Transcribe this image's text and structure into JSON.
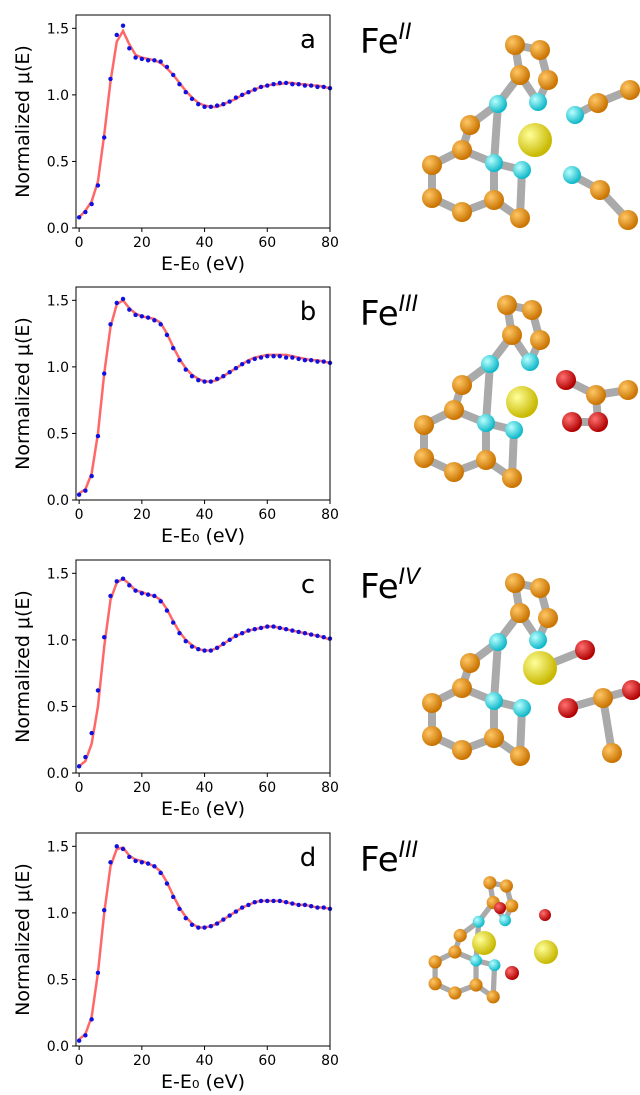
{
  "chart_data": [
    {
      "type": "line",
      "panel_label": "a",
      "annotation": {
        "text": "Fe",
        "superscript": "II",
        "color": "#1a1aff"
      },
      "xlabel": "E-E₀ (eV)",
      "ylabel": "Normalized μ(E)",
      "xlim": [
        -1,
        80
      ],
      "ylim": [
        0,
        1.6
      ],
      "xticks": [
        0,
        20,
        40,
        60,
        80
      ],
      "yticks": [
        {
          "value": 0,
          "label": "0.0"
        },
        {
          "value": 0.5,
          "label": "0.5"
        },
        {
          "value": 1,
          "label": "1.0"
        },
        {
          "value": 1.5,
          "label": "1.5"
        }
      ],
      "x": [
        0,
        2,
        4,
        6,
        8,
        10,
        12,
        14,
        16,
        18,
        20,
        22,
        24,
        26,
        28,
        30,
        32,
        34,
        36,
        38,
        40,
        42,
        44,
        46,
        48,
        50,
        52,
        54,
        56,
        58,
        60,
        62,
        64,
        66,
        68,
        70,
        72,
        74,
        76,
        78,
        80
      ],
      "series": [
        {
          "style": "line",
          "color": "#ff4d4d",
          "values": [
            0.08,
            0.13,
            0.2,
            0.35,
            0.7,
            1.1,
            1.4,
            1.48,
            1.38,
            1.3,
            1.28,
            1.27,
            1.26,
            1.24,
            1.2,
            1.15,
            1.09,
            1.03,
            0.98,
            0.94,
            0.92,
            0.91,
            0.91,
            0.93,
            0.95,
            0.97,
            1.0,
            1.02,
            1.04,
            1.06,
            1.07,
            1.08,
            1.08,
            1.09,
            1.09,
            1.08,
            1.08,
            1.07,
            1.07,
            1.06,
            1.05
          ]
        },
        {
          "style": "markers",
          "color": "#1010e0",
          "values": [
            0.08,
            0.12,
            0.18,
            0.32,
            0.68,
            1.12,
            1.45,
            1.52,
            1.35,
            1.28,
            1.27,
            1.26,
            1.26,
            1.25,
            1.21,
            1.15,
            1.08,
            1.02,
            0.97,
            0.93,
            0.91,
            0.91,
            0.92,
            0.93,
            0.95,
            0.98,
            1.0,
            1.02,
            1.04,
            1.06,
            1.07,
            1.08,
            1.09,
            1.09,
            1.08,
            1.08,
            1.07,
            1.07,
            1.06,
            1.06,
            1.05
          ]
        }
      ]
    },
    {
      "type": "line",
      "panel_label": "b",
      "annotation": {
        "text": "Fe",
        "superscript": "III",
        "color": "#2a962a"
      },
      "xlabel": "E-E₀ (eV)",
      "ylabel": "Normalized μ(E)",
      "xlim": [
        -1,
        80
      ],
      "ylim": [
        0,
        1.6
      ],
      "xticks": [
        0,
        20,
        40,
        60,
        80
      ],
      "yticks": [
        {
          "value": 0,
          "label": "0.0"
        },
        {
          "value": 0.5,
          "label": "0.5"
        },
        {
          "value": 1,
          "label": "1.0"
        },
        {
          "value": 1.5,
          "label": "1.5"
        }
      ],
      "x": [
        0,
        2,
        4,
        6,
        8,
        10,
        12,
        14,
        16,
        18,
        20,
        22,
        24,
        26,
        28,
        30,
        32,
        34,
        36,
        38,
        40,
        42,
        44,
        46,
        48,
        50,
        52,
        54,
        56,
        58,
        60,
        62,
        64,
        66,
        68,
        70,
        72,
        74,
        76,
        78,
        80
      ],
      "series": [
        {
          "style": "line",
          "color": "#ff4d4d",
          "values": [
            0.05,
            0.08,
            0.2,
            0.5,
            0.95,
            1.3,
            1.47,
            1.5,
            1.44,
            1.4,
            1.38,
            1.37,
            1.36,
            1.33,
            1.25,
            1.15,
            1.06,
            0.99,
            0.94,
            0.91,
            0.89,
            0.89,
            0.9,
            0.93,
            0.96,
            0.99,
            1.02,
            1.05,
            1.07,
            1.08,
            1.09,
            1.09,
            1.09,
            1.09,
            1.08,
            1.07,
            1.06,
            1.05,
            1.05,
            1.04,
            1.03
          ]
        },
        {
          "style": "markers",
          "color": "#1010e0",
          "values": [
            0.04,
            0.07,
            0.18,
            0.48,
            0.95,
            1.32,
            1.48,
            1.51,
            1.43,
            1.39,
            1.38,
            1.37,
            1.35,
            1.32,
            1.24,
            1.14,
            1.05,
            0.98,
            0.93,
            0.9,
            0.89,
            0.89,
            0.91,
            0.93,
            0.96,
            0.99,
            1.02,
            1.04,
            1.06,
            1.07,
            1.08,
            1.08,
            1.08,
            1.07,
            1.07,
            1.06,
            1.05,
            1.05,
            1.04,
            1.04,
            1.03
          ]
        }
      ]
    },
    {
      "type": "line",
      "panel_label": "c",
      "annotation": {
        "text": "Fe",
        "superscript": "IV",
        "color": "#ff1a1a"
      },
      "xlabel": "E-E₀ (eV)",
      "ylabel": "Normalized μ(E)",
      "xlim": [
        -1,
        80
      ],
      "ylim": [
        0,
        1.6
      ],
      "xticks": [
        0,
        20,
        40,
        60,
        80
      ],
      "yticks": [
        {
          "value": 0,
          "label": "0.0"
        },
        {
          "value": 0.5,
          "label": "0.5"
        },
        {
          "value": 1,
          "label": "1.0"
        },
        {
          "value": 1.5,
          "label": "1.5"
        }
      ],
      "x": [
        0,
        2,
        4,
        6,
        8,
        10,
        12,
        14,
        16,
        18,
        20,
        22,
        24,
        26,
        28,
        30,
        32,
        34,
        36,
        38,
        40,
        42,
        44,
        46,
        48,
        50,
        52,
        54,
        56,
        58,
        60,
        62,
        64,
        66,
        68,
        70,
        72,
        74,
        76,
        78,
        80
      ],
      "series": [
        {
          "style": "line",
          "color": "#ff4d4d",
          "values": [
            0.05,
            0.09,
            0.22,
            0.5,
            0.95,
            1.3,
            1.43,
            1.46,
            1.42,
            1.37,
            1.36,
            1.34,
            1.33,
            1.3,
            1.23,
            1.14,
            1.06,
            1.0,
            0.96,
            0.93,
            0.92,
            0.92,
            0.94,
            0.97,
            1.0,
            1.03,
            1.05,
            1.07,
            1.08,
            1.09,
            1.1,
            1.1,
            1.09,
            1.08,
            1.07,
            1.06,
            1.05,
            1.04,
            1.03,
            1.02,
            1.0
          ]
        },
        {
          "style": "markers",
          "color": "#1010e0",
          "values": [
            0.05,
            0.12,
            0.3,
            0.62,
            1.02,
            1.33,
            1.44,
            1.46,
            1.41,
            1.37,
            1.35,
            1.34,
            1.33,
            1.29,
            1.22,
            1.13,
            1.05,
            0.99,
            0.95,
            0.93,
            0.92,
            0.92,
            0.94,
            0.97,
            1.0,
            1.03,
            1.05,
            1.07,
            1.08,
            1.09,
            1.1,
            1.1,
            1.09,
            1.08,
            1.07,
            1.06,
            1.05,
            1.04,
            1.03,
            1.02,
            1.01
          ]
        }
      ]
    },
    {
      "type": "line",
      "panel_label": "d",
      "annotation": {
        "text": "Fe",
        "superscript": "III",
        "color": "#2a962a"
      },
      "xlabel": "E-E₀ (eV)",
      "ylabel": "Normalized μ(E)",
      "xlim": [
        -1,
        80
      ],
      "ylim": [
        0,
        1.6
      ],
      "xticks": [
        0,
        20,
        40,
        60,
        80
      ],
      "yticks": [
        {
          "value": 0,
          "label": "0.0"
        },
        {
          "value": 0.5,
          "label": "0.5"
        },
        {
          "value": 1,
          "label": "1.0"
        },
        {
          "value": 1.5,
          "label": "1.5"
        }
      ],
      "x": [
        0,
        2,
        4,
        6,
        8,
        10,
        12,
        14,
        16,
        18,
        20,
        22,
        24,
        26,
        28,
        30,
        32,
        34,
        36,
        38,
        40,
        42,
        44,
        46,
        48,
        50,
        52,
        54,
        56,
        58,
        60,
        62,
        64,
        66,
        68,
        70,
        72,
        74,
        76,
        78,
        80
      ],
      "series": [
        {
          "style": "line",
          "color": "#ff4d4d",
          "values": [
            0.05,
            0.09,
            0.22,
            0.55,
            1.0,
            1.35,
            1.48,
            1.49,
            1.43,
            1.4,
            1.39,
            1.37,
            1.35,
            1.31,
            1.23,
            1.13,
            1.04,
            0.97,
            0.92,
            0.89,
            0.89,
            0.9,
            0.92,
            0.95,
            0.98,
            1.01,
            1.04,
            1.06,
            1.08,
            1.09,
            1.09,
            1.09,
            1.09,
            1.08,
            1.07,
            1.06,
            1.06,
            1.05,
            1.04,
            1.04,
            1.03
          ]
        },
        {
          "style": "markers",
          "color": "#1010e0",
          "values": [
            0.04,
            0.08,
            0.2,
            0.55,
            1.02,
            1.38,
            1.5,
            1.48,
            1.42,
            1.39,
            1.38,
            1.37,
            1.35,
            1.3,
            1.22,
            1.12,
            1.03,
            0.96,
            0.91,
            0.89,
            0.89,
            0.9,
            0.92,
            0.95,
            0.98,
            1.01,
            1.04,
            1.06,
            1.08,
            1.09,
            1.09,
            1.09,
            1.09,
            1.08,
            1.07,
            1.06,
            1.06,
            1.05,
            1.04,
            1.04,
            1.03
          ]
        }
      ]
    }
  ]
}
